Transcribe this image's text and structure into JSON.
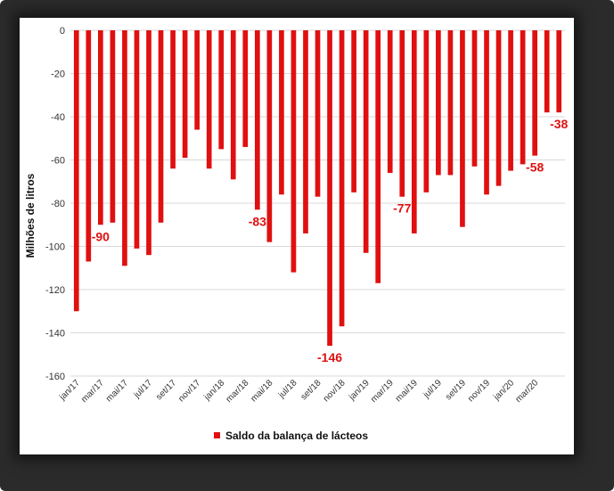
{
  "chart_data": {
    "type": "bar",
    "ylabel": "Milhões de litros",
    "ylim": [
      -160,
      0
    ],
    "yticks": [
      0,
      -20,
      -40,
      -60,
      -80,
      -100,
      -120,
      -140,
      -160
    ],
    "grid": true,
    "legend": {
      "position": "bottom",
      "label": "Saldo da balança de lácteos"
    },
    "color": "#e01010",
    "categories": [
      "jan/17",
      "fev/17",
      "mar/17",
      "abr/17",
      "mai/17",
      "jun/17",
      "jul/17",
      "ago/17",
      "set/17",
      "out/17",
      "nov/17",
      "dez/17",
      "jan/18",
      "fev/18",
      "mar/18",
      "abr/18",
      "mai/18",
      "jun/18",
      "jul/18",
      "ago/18",
      "set/18",
      "out/18",
      "nov/18",
      "dez/18",
      "jan/19",
      "fev/19",
      "mar/19",
      "abr/19",
      "mai/19",
      "jun/19",
      "jul/19",
      "ago/19",
      "set/19",
      "out/19",
      "nov/19",
      "dez/19",
      "jan/20",
      "fev/20",
      "mar/20",
      "abr/20",
      "mai/20"
    ],
    "visible_tick_labels": [
      "jan/17",
      "mar/17",
      "mai/17",
      "jul/17",
      "set/17",
      "nov/17",
      "jan/18",
      "mar/18",
      "mai/18",
      "jul/18",
      "set/18",
      "nov/18",
      "jan/19",
      "mar/19",
      "mai/19",
      "jul/19",
      "set/19",
      "nov/19",
      "jan/20",
      "mar/20"
    ],
    "series": [
      {
        "values": [
          -130,
          -107,
          -90,
          -89,
          -109,
          -101,
          -104,
          -89,
          -64,
          -59,
          -46,
          -64,
          -55,
          -69,
          -54,
          -83,
          -98,
          -76,
          -112,
          -94,
          -77,
          -146,
          -137,
          -75,
          -103,
          -117,
          -66,
          -77,
          -94,
          -75,
          -67,
          -67,
          -91,
          -63,
          -76,
          -72,
          -65,
          -62,
          -58,
          -38,
          -38
        ]
      }
    ],
    "data_labels": [
      {
        "category": "mar/17",
        "text": "-90"
      },
      {
        "category": "abr/18",
        "text": "-83"
      },
      {
        "category": "out/18",
        "text": "-146"
      },
      {
        "category": "abr/19",
        "text": "-77"
      },
      {
        "category": "mar/20",
        "text": "-58"
      },
      {
        "category": "mai/20",
        "text": "-38"
      }
    ]
  }
}
